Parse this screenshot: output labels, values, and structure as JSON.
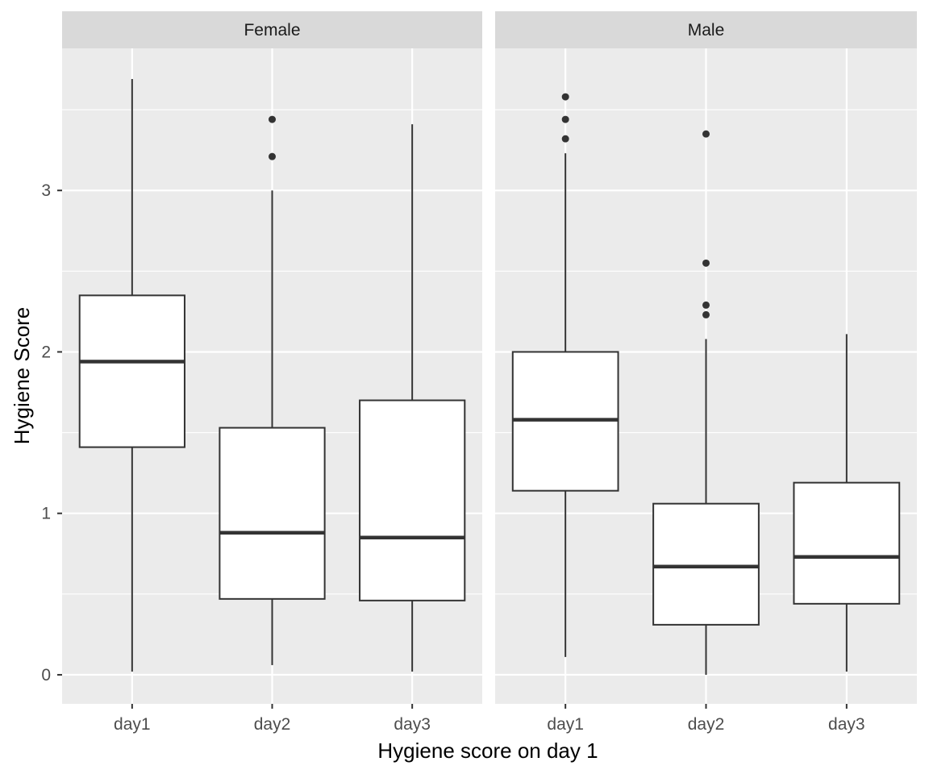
{
  "chart_data": {
    "type": "boxplot",
    "xlabel": "Hygiene score on day 1",
    "ylabel": "Hygiene Score",
    "ylim": [
      -0.18,
      3.88
    ],
    "yticks": [
      0,
      1,
      2,
      3
    ],
    "y_minor_ticks": [
      0.5,
      1.5,
      2.5,
      3.5
    ],
    "categories": [
      "day1",
      "day2",
      "day3"
    ],
    "grid": true,
    "panels": [
      {
        "name": "Female",
        "boxes": [
          {
            "category": "day1",
            "lower": 0.02,
            "q1": 1.41,
            "median": 1.94,
            "q3": 2.35,
            "upper": 3.69,
            "outliers": []
          },
          {
            "category": "day2",
            "lower": 0.06,
            "q1": 0.47,
            "median": 0.88,
            "q3": 1.53,
            "upper": 3.0,
            "outliers": [
              3.44,
              3.21
            ]
          },
          {
            "category": "day3",
            "lower": 0.02,
            "q1": 0.46,
            "median": 0.85,
            "q3": 1.7,
            "upper": 3.41,
            "outliers": []
          }
        ]
      },
      {
        "name": "Male",
        "boxes": [
          {
            "category": "day1",
            "lower": 0.11,
            "q1": 1.14,
            "median": 1.58,
            "q3": 2.0,
            "upper": 3.23,
            "outliers": [
              3.58,
              3.44,
              3.32
            ]
          },
          {
            "category": "day2",
            "lower": 0.0,
            "q1": 0.31,
            "median": 0.67,
            "q3": 1.06,
            "upper": 2.08,
            "outliers": [
              3.35,
              2.55,
              2.29,
              2.23
            ]
          },
          {
            "category": "day3",
            "lower": 0.02,
            "q1": 0.44,
            "median": 0.73,
            "q3": 1.19,
            "upper": 2.11,
            "outliers": []
          }
        ]
      }
    ]
  }
}
